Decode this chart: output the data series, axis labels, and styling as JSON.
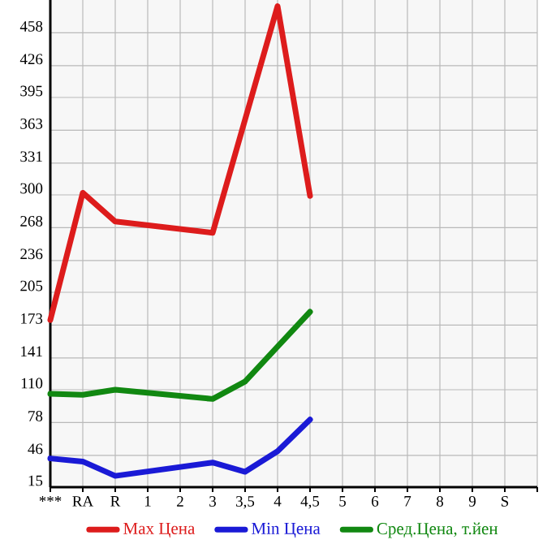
{
  "chart_data": {
    "type": "line",
    "categories": [
      "***",
      "RA",
      "R",
      "1",
      "2",
      "3",
      "3,5",
      "4",
      "4,5",
      "5",
      "6",
      "7",
      "8",
      "9",
      "S"
    ],
    "series": [
      {
        "name": "Max Цена",
        "color": "#dd1c1c",
        "values": [
          178,
          302,
          274,
          null,
          null,
          263,
          null,
          484,
          299,
          null,
          null,
          null,
          null,
          null,
          null
        ]
      },
      {
        "name": "Min Цена",
        "color": "#1a1ad6",
        "values": [
          43,
          40,
          26,
          null,
          null,
          39,
          30,
          50,
          81,
          null,
          null,
          null,
          null,
          null,
          null
        ]
      },
      {
        "name": "Сред.Цена, т.йен",
        "color": "#118811",
        "values": [
          106,
          105,
          110,
          null,
          null,
          101,
          118,
          152,
          186,
          null,
          null,
          null,
          null,
          null,
          null
        ]
      }
    ],
    "ylim": [
      15,
      490
    ],
    "yticks": [
      15,
      46,
      78,
      110,
      141,
      173,
      205,
      236,
      268,
      300,
      331,
      363,
      395,
      426,
      458
    ],
    "grid": true,
    "legend": "bottom",
    "marker": "none",
    "line_style": "solid"
  }
}
